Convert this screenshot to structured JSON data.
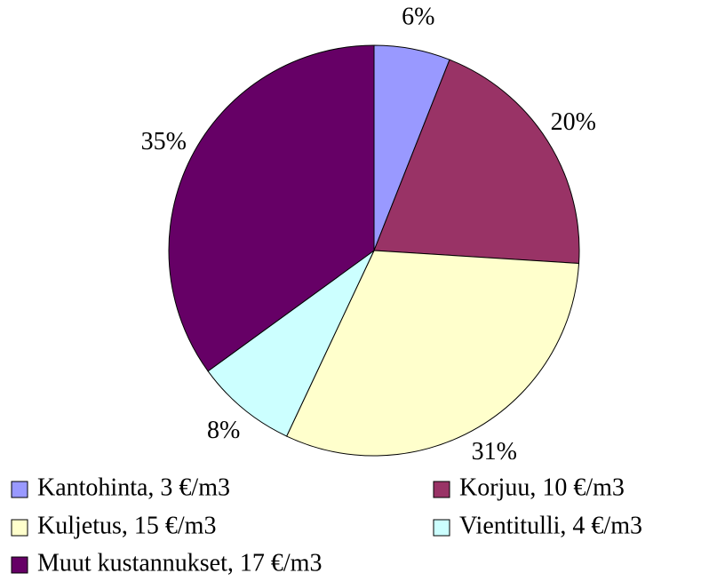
{
  "chart_data": {
    "type": "pie",
    "categories": [
      "Kantohinta, 3 €/m3",
      "Korjuu, 10 €/m3",
      "Kuljetus, 15 €/m3",
      "Vientitulli, 4 €/m3",
      "Muut kustannukset, 17 €/m3"
    ],
    "values": [
      6,
      20,
      31,
      8,
      35
    ],
    "value_labels": [
      "6%",
      "20%",
      "31%",
      "8%",
      "35%"
    ],
    "colors": [
      "#9999ff",
      "#993366",
      "#ffffcc",
      "#ccffff",
      "#660066"
    ],
    "legend": "bottom"
  }
}
